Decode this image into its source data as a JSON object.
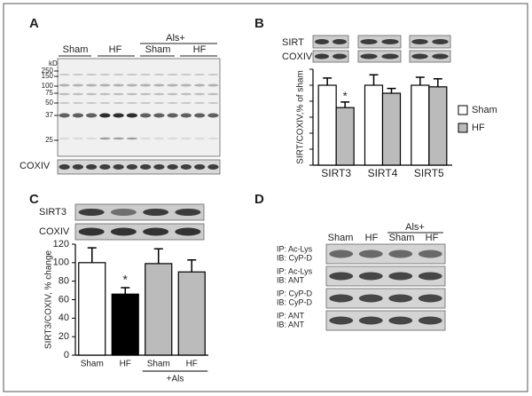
{
  "panels": {
    "a": {
      "label": "A",
      "groups": [
        "Sham",
        "HF",
        "Sham",
        "HF"
      ],
      "group_header": "Als+",
      "ladder_unit": "kDa",
      "ladder": [
        "250",
        "150",
        "100",
        "75",
        "50",
        "37",
        "25"
      ],
      "loading": "COXIV"
    },
    "b": {
      "label": "B",
      "blots": [
        "SIRT",
        "COXIV"
      ]
    },
    "c": {
      "label": "C",
      "blots": [
        "SIRT3",
        "COXIV"
      ]
    },
    "d": {
      "label": "D",
      "groups": [
        "Sham",
        "HF",
        "Sham",
        "HF"
      ],
      "group_header": "Als+",
      "rows": [
        [
          "IP: Ac-Lys",
          "IB: CyP-D"
        ],
        [
          "IP: Ac-Lys",
          "IB: ANT"
        ],
        [
          "IP: CyP-D",
          "IB: CyP-D"
        ],
        [
          "IP: ANT",
          "IB: ANT"
        ]
      ]
    }
  },
  "chart_data": [
    {
      "type": "bar",
      "y_label": "SIRT/COXIV,% of sham",
      "categories": [
        "SIRT3",
        "SIRT4",
        "SIRT5"
      ],
      "series": [
        {
          "name": "Sham",
          "color": "#ffffff",
          "values": [
            100,
            100,
            100
          ],
          "errors": [
            9,
            13,
            10
          ]
        },
        {
          "name": "HF",
          "color": "#bbbbbb",
          "values": [
            72,
            90,
            98
          ],
          "errors": [
            7,
            6,
            10
          ]
        }
      ],
      "ylim": [
        0,
        120
      ],
      "yticks": [
        0,
        20,
        40,
        60,
        80,
        100,
        120
      ],
      "annotations": [
        "*"
      ]
    },
    {
      "type": "bar",
      "y_label": "SIRT3/COXIV, % change",
      "categories": [
        "Sham",
        "HF",
        "Sham",
        "HF"
      ],
      "values": [
        100,
        66,
        99,
        90
      ],
      "errors": [
        16,
        7,
        16,
        13
      ],
      "colors": [
        "#ffffff",
        "#000000",
        "#bbbbbb",
        "#bbbbbb"
      ],
      "group_label": "+Als",
      "ylim": [
        0,
        120
      ],
      "yticks": [
        0,
        20,
        40,
        60,
        80,
        100,
        120
      ],
      "annotations": [
        "*"
      ]
    }
  ]
}
